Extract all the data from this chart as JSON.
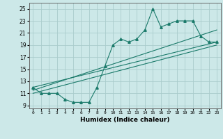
{
  "xlabel": "Humidex (Indice chaleur)",
  "ylabel": "",
  "bg_color": "#cce8e8",
  "grid_color": "#aacccc",
  "line_color": "#1a7a6a",
  "xlim": [
    -0.5,
    23.5
  ],
  "ylim": [
    8.5,
    26
  ],
  "xticks": [
    0,
    1,
    2,
    3,
    4,
    5,
    6,
    7,
    8,
    9,
    10,
    11,
    12,
    13,
    14,
    15,
    16,
    17,
    18,
    19,
    20,
    21,
    22,
    23
  ],
  "yticks": [
    9,
    11,
    13,
    15,
    17,
    19,
    21,
    23,
    25
  ],
  "main_x": [
    0,
    1,
    2,
    3,
    4,
    5,
    6,
    7,
    8,
    9,
    10,
    11,
    12,
    13,
    14,
    15,
    16,
    17,
    18,
    19,
    20,
    21,
    22,
    23
  ],
  "main_y": [
    12,
    11,
    11,
    11,
    10,
    9.5,
    9.5,
    9.5,
    12,
    15.5,
    19,
    20,
    19.5,
    20,
    21.5,
    25,
    22,
    22.5,
    23,
    23,
    23,
    20.5,
    19.5,
    19.5
  ],
  "line1_x": [
    0,
    23
  ],
  "line1_y": [
    12,
    19.5
  ],
  "line2_x": [
    0,
    23
  ],
  "line2_y": [
    11.5,
    21.5
  ],
  "line3_x": [
    0,
    23
  ],
  "line3_y": [
    11,
    19
  ]
}
